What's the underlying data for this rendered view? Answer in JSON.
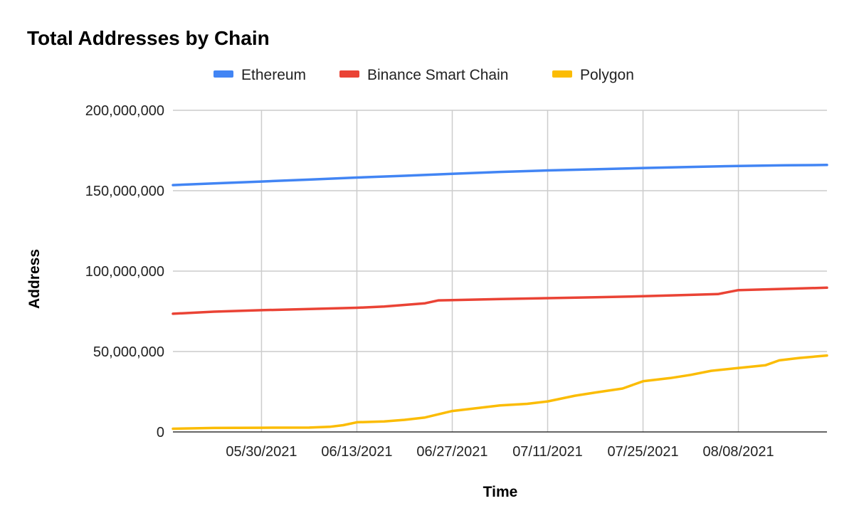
{
  "chart_data": {
    "type": "line",
    "title": "Total Addresses by Chain",
    "xlabel": "Time",
    "ylabel": "Address",
    "ylim": [
      0,
      200000000
    ],
    "yticks": [
      0,
      50000000,
      100000000,
      150000000,
      200000000
    ],
    "ytick_labels": [
      "0",
      "50,000,000",
      "100,000,000",
      "150,000,000",
      "200,000,000"
    ],
    "xlim": [
      "2021-05-17",
      "2021-08-21"
    ],
    "xticks": [
      "2021-05-30",
      "2021-06-13",
      "2021-06-27",
      "2021-07-11",
      "2021-07-25",
      "2021-08-08"
    ],
    "xtick_labels": [
      "05/30/2021",
      "06/13/2021",
      "06/27/2021",
      "07/11/2021",
      "07/25/2021",
      "08/08/2021"
    ],
    "grid": true,
    "legend": "top",
    "series": [
      {
        "name": "Ethereum",
        "color": "#4285f4",
        "points": [
          [
            "2021-05-17",
            153500000
          ],
          [
            "2021-05-23",
            154500000
          ],
          [
            "2021-05-30",
            155700000
          ],
          [
            "2021-06-06",
            156900000
          ],
          [
            "2021-06-13",
            158200000
          ],
          [
            "2021-06-20",
            159300000
          ],
          [
            "2021-06-27",
            160500000
          ],
          [
            "2021-07-04",
            161700000
          ],
          [
            "2021-07-11",
            162600000
          ],
          [
            "2021-07-18",
            163300000
          ],
          [
            "2021-07-25",
            164100000
          ],
          [
            "2021-08-01",
            164800000
          ],
          [
            "2021-08-08",
            165400000
          ],
          [
            "2021-08-15",
            165800000
          ],
          [
            "2021-08-21",
            166000000
          ]
        ]
      },
      {
        "name": "Binance Smart Chain",
        "color": "#ea4335",
        "points": [
          [
            "2021-05-17",
            73500000
          ],
          [
            "2021-05-23",
            74800000
          ],
          [
            "2021-05-30",
            75700000
          ],
          [
            "2021-06-06",
            76400000
          ],
          [
            "2021-06-13",
            77200000
          ],
          [
            "2021-06-17",
            78000000
          ],
          [
            "2021-06-20",
            79000000
          ],
          [
            "2021-06-23",
            80000000
          ],
          [
            "2021-06-25",
            81800000
          ],
          [
            "2021-06-27",
            82000000
          ],
          [
            "2021-07-04",
            82600000
          ],
          [
            "2021-07-11",
            83200000
          ],
          [
            "2021-07-18",
            83700000
          ],
          [
            "2021-07-25",
            84400000
          ],
          [
            "2021-08-01",
            85200000
          ],
          [
            "2021-08-05",
            85700000
          ],
          [
            "2021-08-08",
            88200000
          ],
          [
            "2021-08-15",
            89000000
          ],
          [
            "2021-08-21",
            89700000
          ]
        ]
      },
      {
        "name": "Polygon",
        "color": "#fbbc04",
        "points": [
          [
            "2021-05-17",
            2000000
          ],
          [
            "2021-05-23",
            2500000
          ],
          [
            "2021-05-30",
            2600000
          ],
          [
            "2021-06-06",
            2700000
          ],
          [
            "2021-06-09",
            3200000
          ],
          [
            "2021-06-11",
            4200000
          ],
          [
            "2021-06-13",
            6000000
          ],
          [
            "2021-06-17",
            6500000
          ],
          [
            "2021-06-20",
            7500000
          ],
          [
            "2021-06-23",
            9000000
          ],
          [
            "2021-06-27",
            13000000
          ],
          [
            "2021-07-01",
            15000000
          ],
          [
            "2021-07-04",
            16500000
          ],
          [
            "2021-07-08",
            17500000
          ],
          [
            "2021-07-11",
            19000000
          ],
          [
            "2021-07-15",
            22500000
          ],
          [
            "2021-07-18",
            24500000
          ],
          [
            "2021-07-22",
            27000000
          ],
          [
            "2021-07-25",
            31500000
          ],
          [
            "2021-07-29",
            33500000
          ],
          [
            "2021-08-01",
            35500000
          ],
          [
            "2021-08-04",
            38000000
          ],
          [
            "2021-08-08",
            39800000
          ],
          [
            "2021-08-12",
            41500000
          ],
          [
            "2021-08-14",
            44500000
          ],
          [
            "2021-08-17",
            46000000
          ],
          [
            "2021-08-21",
            47500000
          ]
        ]
      }
    ]
  }
}
